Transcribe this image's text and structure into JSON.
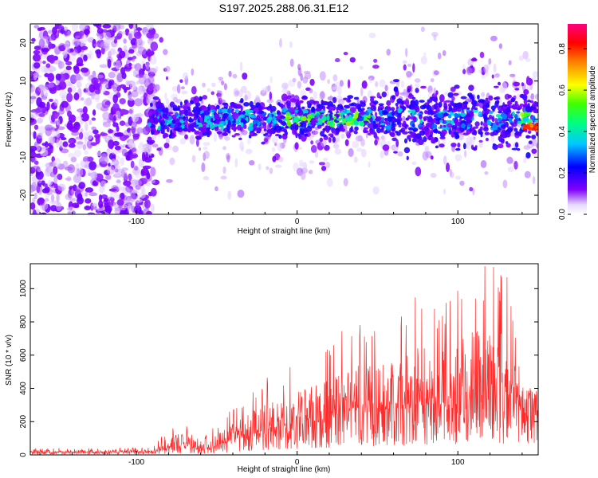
{
  "title": "S197.2025.288.06.31.E12",
  "colors": {
    "signal": "#ff2a2a",
    "background": "#ffffff",
    "axis": "#000000"
  },
  "chart_data": [
    {
      "type": "heatmap",
      "name": "spectrogram",
      "xlabel": "Height of straight line (km)",
      "ylabel": "Frequency (Hz)",
      "xlim": [
        -166,
        150
      ],
      "ylim": [
        -25,
        25
      ],
      "x_ticks": [
        -100,
        0,
        100
      ],
      "y_ticks": [
        -20,
        -10,
        0,
        10,
        20
      ],
      "colorbar": {
        "label": "Normalized spectral amplitude",
        "range": [
          0.0,
          0.92
        ],
        "ticks": [
          "0.0",
          "0.2",
          "0.4",
          "0.6",
          "0.8"
        ],
        "colormap": [
          "#ffffff",
          "#8000ff",
          "#0000ff",
          "#00c8ff",
          "#00ff80",
          "#80ff00",
          "#ffff00",
          "#ff8000",
          "#ff0000",
          "#ff0080"
        ]
      },
      "band": {
        "noise_region_x": [
          -166,
          -88
        ],
        "signal_region_x": [
          -92,
          150
        ],
        "center_frequency_hz": 0,
        "strong_segments_x": [
          [
            -10,
            45
          ],
          [
            138,
            150
          ]
        ]
      }
    },
    {
      "type": "line",
      "name": "snr",
      "xlabel": "Height of straight line (km)",
      "ylabel": "SNR (10 * v/v)",
      "xlim": [
        -166,
        150
      ],
      "ylim": [
        0,
        1150
      ],
      "x_ticks": [
        -100,
        0,
        100
      ],
      "y_ticks": [
        0,
        200,
        400,
        600,
        800,
        1000
      ],
      "series": [
        {
          "name": "SNR",
          "color": "#ff2a2a",
          "envelope": [
            {
              "x": -166,
              "base": 15,
              "peak": 40
            },
            {
              "x": -90,
              "base": 15,
              "peak": 45
            },
            {
              "x": -80,
              "base": 40,
              "peak": 160
            },
            {
              "x": -70,
              "base": 60,
              "peak": 200
            },
            {
              "x": -60,
              "base": 20,
              "peak": 90
            },
            {
              "x": -40,
              "base": 80,
              "peak": 280
            },
            {
              "x": -25,
              "base": 120,
              "peak": 430
            },
            {
              "x": -10,
              "base": 160,
              "peak": 510
            },
            {
              "x": 0,
              "base": 180,
              "peak": 560
            },
            {
              "x": 20,
              "base": 200,
              "peak": 650
            },
            {
              "x": 35,
              "base": 250,
              "peak": 830
            },
            {
              "x": 60,
              "base": 260,
              "peak": 790
            },
            {
              "x": 73,
              "base": 280,
              "peak": 1000
            },
            {
              "x": 85,
              "base": 280,
              "peak": 900
            },
            {
              "x": 100,
              "base": 280,
              "peak": 1040
            },
            {
              "x": 112,
              "base": 290,
              "peak": 1150
            },
            {
              "x": 130,
              "base": 280,
              "peak": 1120
            },
            {
              "x": 140,
              "base": 320,
              "peak": 450
            },
            {
              "x": 150,
              "base": 340,
              "peak": 420
            }
          ]
        }
      ]
    }
  ]
}
